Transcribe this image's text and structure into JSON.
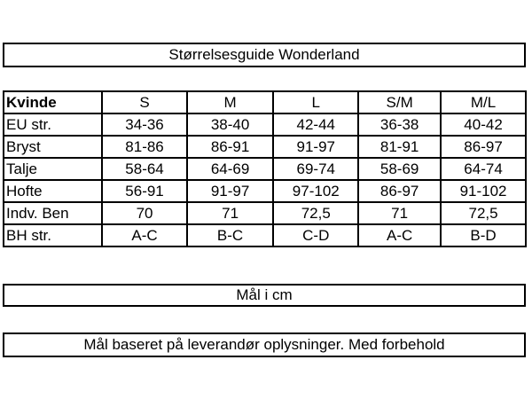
{
  "title": "Størrelsesguide Wonderland",
  "table": {
    "header": [
      "Kvinde",
      "S",
      "M",
      "L",
      "S/M",
      "M/L"
    ],
    "rows": [
      [
        "EU str.",
        "34-36",
        "38-40",
        "42-44",
        "36-38",
        "40-42"
      ],
      [
        "Bryst",
        "81-86",
        "86-91",
        "91-97",
        "81-91",
        "86-97"
      ],
      [
        "Talje",
        "58-64",
        "64-69",
        "69-74",
        "58-69",
        "64-74"
      ],
      [
        "Hofte",
        "56-91",
        "91-97",
        "97-102",
        "86-97",
        "91-102"
      ],
      [
        "Indv. Ben",
        "70",
        "71",
        "72,5",
        "71",
        "72,5"
      ],
      [
        "BH str.",
        "A-C",
        "B-C",
        "C-D",
        "A-C",
        "B-D"
      ]
    ]
  },
  "unit_note": "Mål i cm",
  "disclaimer": "Mål baseret på leverandør oplysninger. Med forbehold"
}
